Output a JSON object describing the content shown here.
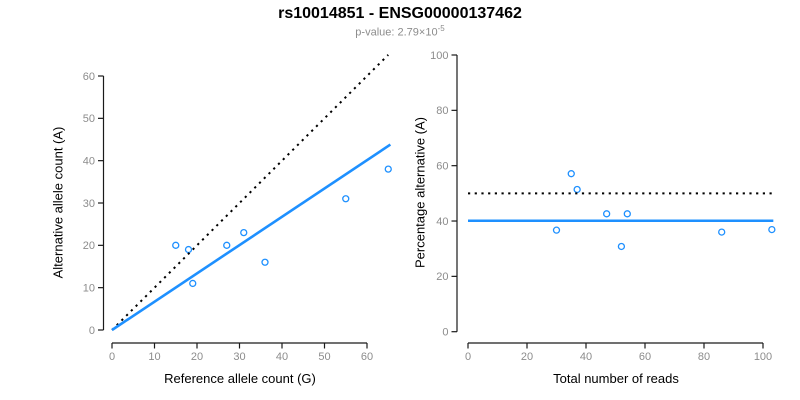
{
  "header": {
    "title": "rs10014851 - ENSG00000137462",
    "subtitle_prefix": "p-value: 2.79×10",
    "subtitle_exponent": "-5"
  },
  "colors": {
    "accent_blue": "#1E90FF",
    "dotted_line": "#000000",
    "axis_line": "#1a1a1a",
    "tick_label": "#8c8c8c",
    "title": "#000000",
    "subtitle": "#8c8c8c"
  },
  "chart_data": [
    {
      "type": "scatter",
      "name": "allele-counts",
      "xlabel": "Reference allele count (G)",
      "ylabel": "Alternative allele count (A)",
      "xticks": [
        0,
        10,
        20,
        30,
        40,
        50,
        60
      ],
      "yticks": [
        0,
        10,
        20,
        30,
        40,
        50,
        60
      ],
      "xlim": [
        0,
        65.5
      ],
      "ylim": [
        0,
        65
      ],
      "marker": "open-circle",
      "points": [
        [
          15,
          20
        ],
        [
          18,
          19
        ],
        [
          19,
          11
        ],
        [
          27,
          20
        ],
        [
          31,
          23
        ],
        [
          36,
          16
        ],
        [
          55,
          31
        ],
        [
          65,
          38
        ]
      ],
      "lines": [
        {
          "name": "expected-50-50",
          "style": "dotted",
          "color": "#000000",
          "from": [
            0,
            0
          ],
          "to": [
            65,
            65
          ]
        },
        {
          "name": "observed-fit",
          "style": "solid",
          "color": "#1E90FF",
          "from": [
            0,
            0
          ],
          "to": [
            65.5,
            43.8
          ]
        }
      ]
    },
    {
      "type": "scatter",
      "name": "percentage-vs-coverage",
      "xlabel": "Total number of reads",
      "ylabel": "Percentage alternative (A)",
      "xticks": [
        0,
        20,
        40,
        60,
        80,
        100
      ],
      "yticks": [
        0,
        20,
        40,
        60,
        80,
        100
      ],
      "xlim": [
        0,
        103.5
      ],
      "ylim": [
        0,
        100
      ],
      "marker": "open-circle",
      "points": [
        [
          30,
          36.7
        ],
        [
          35,
          57.1
        ],
        [
          37,
          51.4
        ],
        [
          47,
          42.6
        ],
        [
          52,
          30.8
        ],
        [
          54,
          42.6
        ],
        [
          86,
          36.0
        ],
        [
          103,
          36.9
        ]
      ],
      "lines": [
        {
          "name": "expected-50pct",
          "style": "dotted",
          "color": "#000000",
          "from": [
            0,
            50
          ],
          "to": [
            103.5,
            50
          ]
        },
        {
          "name": "mean-pct",
          "style": "solid",
          "color": "#1E90FF",
          "from": [
            0,
            40.1
          ],
          "to": [
            103.5,
            40.1
          ]
        }
      ]
    }
  ]
}
